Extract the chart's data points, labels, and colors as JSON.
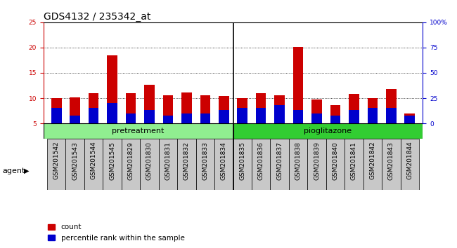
{
  "title": "GDS4132 / 235342_at",
  "samples": [
    "GSM201542",
    "GSM201543",
    "GSM201544",
    "GSM201545",
    "GSM201829",
    "GSM201830",
    "GSM201831",
    "GSM201832",
    "GSM201833",
    "GSM201834",
    "GSM201835",
    "GSM201836",
    "GSM201837",
    "GSM201838",
    "GSM201839",
    "GSM201840",
    "GSM201841",
    "GSM201842",
    "GSM201843",
    "GSM201844"
  ],
  "count_values": [
    10.0,
    10.2,
    11.0,
    18.4,
    11.0,
    12.7,
    10.5,
    11.1,
    10.6,
    10.4,
    10.0,
    11.0,
    10.6,
    20.1,
    9.7,
    8.6,
    10.9,
    10.0,
    11.8,
    6.9
  ],
  "percentile_values": [
    15,
    8,
    15,
    20,
    10,
    13,
    8,
    10,
    10,
    13,
    15,
    15,
    18,
    13,
    10,
    8,
    13,
    15,
    15,
    8
  ],
  "count_color": "#cc0000",
  "percentile_color": "#0000cc",
  "bar_width": 0.55,
  "ylim_left": [
    5,
    25
  ],
  "ylim_right": [
    0,
    100
  ],
  "yticks_left": [
    5,
    10,
    15,
    20,
    25
  ],
  "yticks_right": [
    0,
    25,
    50,
    75,
    100
  ],
  "ytick_labels_right": [
    "0",
    "25",
    "50",
    "75",
    "100%"
  ],
  "pretreatment_samples": 10,
  "pioglitazone_samples": 10,
  "group_label_pretreatment": "pretreatment",
  "group_label_pioglitazone": "pioglitazone",
  "agent_label": "agent",
  "legend_count": "count",
  "legend_percentile": "percentile rank within the sample",
  "bg_color_chart": "#ffffff",
  "bg_color_xticklabel": "#c8c8c8",
  "bg_color_pretreatment": "#90ee90",
  "bg_color_pioglitazone": "#32cd32",
  "title_fontsize": 10,
  "tick_fontsize": 6.5,
  "legend_fontsize": 7.5
}
